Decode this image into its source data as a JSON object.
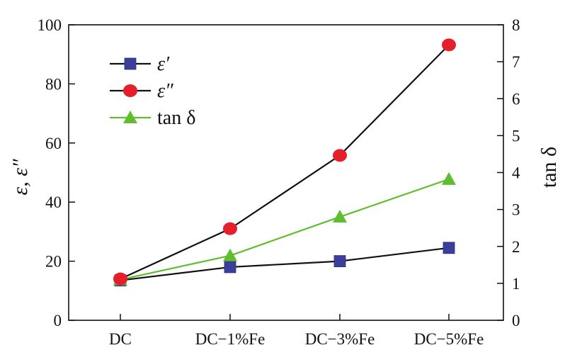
{
  "chart_data": {
    "type": "line",
    "categories": [
      "DC",
      "DC−1%Fe",
      "DC−3%Fe",
      "DC−5%Fe"
    ],
    "series": [
      {
        "name": "ε′",
        "axis": "left",
        "marker": "square",
        "color": "#3b3f9b",
        "line_color": "#111111",
        "values": [
          13.5,
          18,
          20,
          24.5
        ]
      },
      {
        "name": "ε″",
        "axis": "left",
        "marker": "circle",
        "color": "#e5202a",
        "line_color": "#111111",
        "values": [
          14,
          31,
          55.8,
          93.2
        ]
      },
      {
        "name": "tan δ",
        "axis": "right",
        "marker": "triangle",
        "color": "#5fbd2f",
        "line_color": "#5fbd2f",
        "values": [
          1.1,
          1.75,
          2.8,
          3.82
        ]
      }
    ],
    "ylabel": "ε, ε″",
    "y2label": "tan δ",
    "ylim": [
      0,
      100
    ],
    "y2lim": [
      0,
      8
    ],
    "yticks": [
      "0",
      "20",
      "40",
      "60",
      "80",
      "100"
    ],
    "y2ticks": [
      "0",
      "1",
      "2",
      "3",
      "4",
      "5",
      "6",
      "7",
      "8"
    ],
    "legend_position": "top-left",
    "grid": false
  }
}
